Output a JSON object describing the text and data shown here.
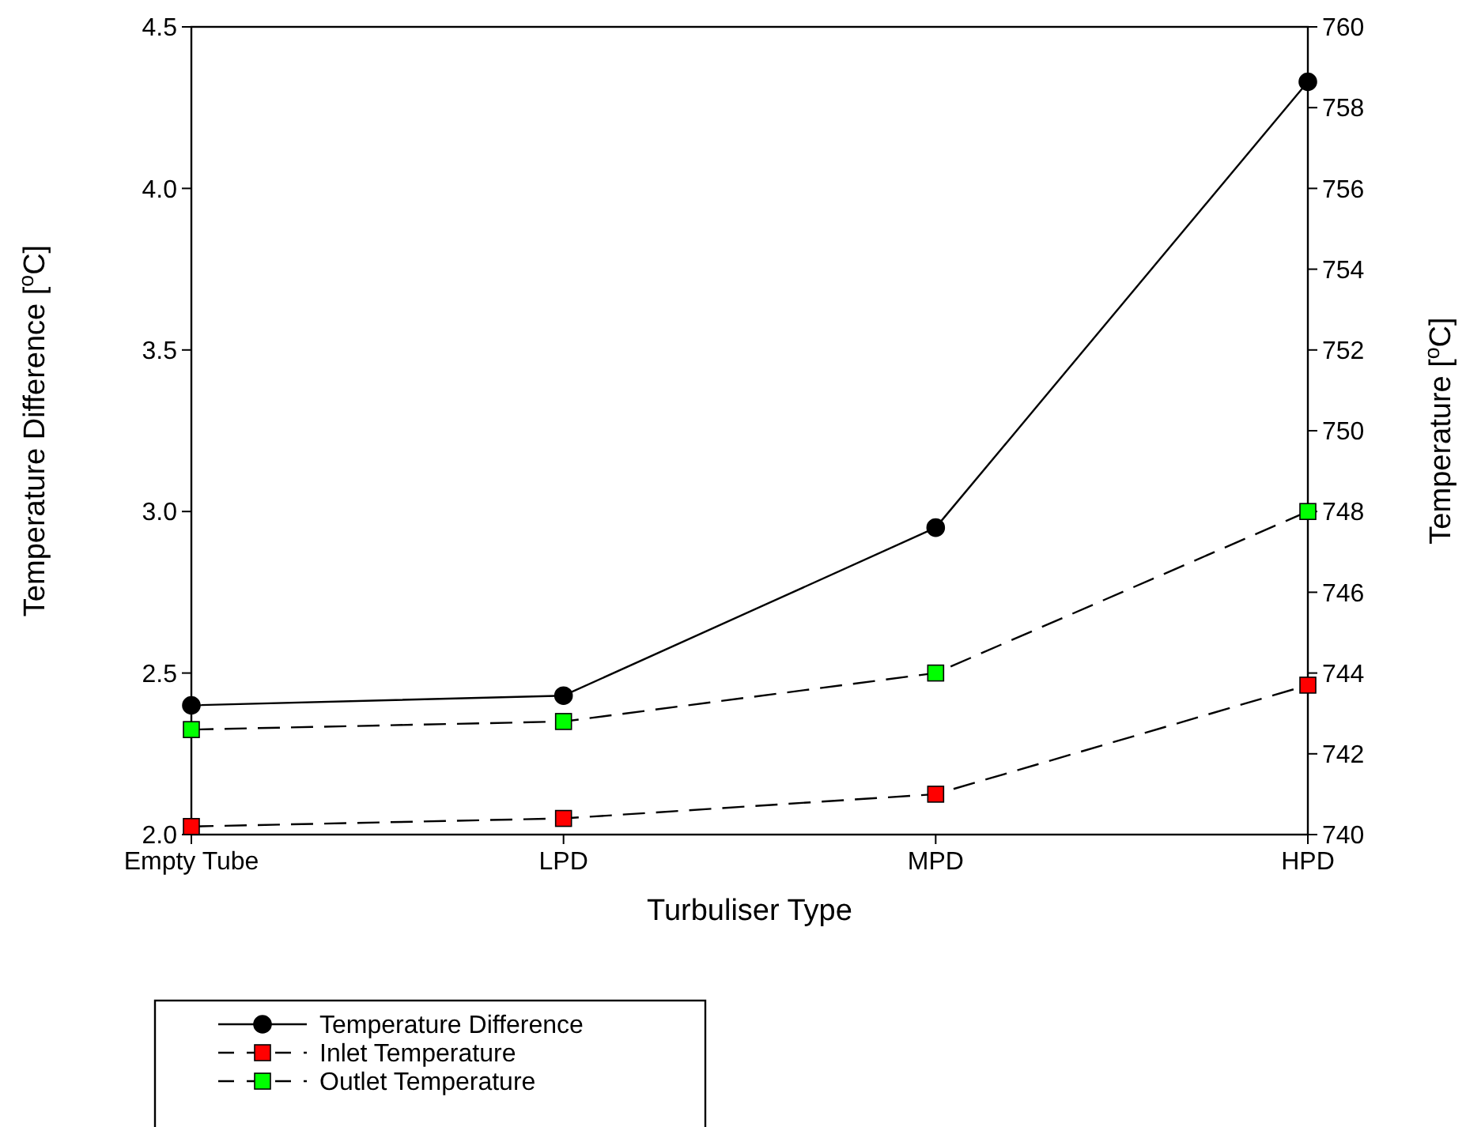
{
  "chart_data": {
    "type": "line",
    "xlabel": "Turbuliser Type",
    "ylabel": "Temperature Difference [$^{o}$C]",
    "y2label": "Temperature [$^{o}$C]",
    "categories": [
      "Empty Tube",
      "LPD",
      "MPD",
      "HPD"
    ],
    "series": [
      {
        "name": "Temperature Difference",
        "color": "#000000",
        "values": [
          2.4,
          2.43,
          2.95,
          4.33
        ],
        "marker": "circle",
        "line_style": "solid"
      },
      {
        "name": "Inlet Temperature",
        "color": "#ff0000",
        "values": [
          740.2,
          740.4,
          741.0,
          743.7
        ],
        "marker": "square",
        "line_style": "dashed",
        "axis": "y2"
      },
      {
        "name": "Outlet Temperature",
        "color": "#00ff00",
        "values": [
          742.6,
          742.8,
          744.0,
          748.0
        ],
        "marker": "square",
        "line_style": "dashed",
        "axis": "y2"
      }
    ],
    "ylim": [
      2,
      4.5
    ],
    "yticks": [
      {
        "value": 2,
        "label": "2.0"
      },
      {
        "value": 2.5,
        "label": "2.5"
      },
      {
        "value": 3,
        "label": "3.0"
      },
      {
        "value": 3.5,
        "label": "3.5"
      },
      {
        "value": 4,
        "label": "4.0"
      },
      {
        "value": 4.5,
        "label": "4.5"
      }
    ],
    "y2lim": [
      740,
      760
    ],
    "y2ticks": [
      740,
      742,
      744,
      746,
      748,
      750,
      752,
      754,
      756,
      758,
      760
    ],
    "grid": false,
    "legend": "bottom left"
  }
}
